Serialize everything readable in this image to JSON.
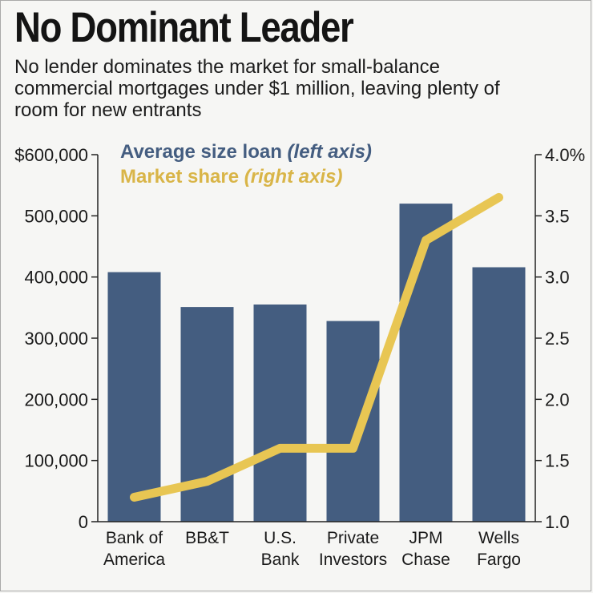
{
  "title": "No Dominant Leader",
  "subtitle_lines": [
    "No lender dominates the market for small-balance",
    "commercial mortgages under $1 million, leaving plenty of",
    "room for new entrants"
  ],
  "legend": {
    "loan_main": "Average size loan",
    "loan_note": "(left axis)",
    "share_main": "Market share",
    "share_note": "(right axis)"
  },
  "colors": {
    "bar": "#445d80",
    "line": "#e8c653",
    "legend_blue": "#445d80",
    "legend_gold": "#d9b548"
  },
  "chart_data": {
    "type": "bar",
    "categories": [
      [
        "Bank of",
        "America"
      ],
      [
        "BB&T"
      ],
      [
        "U.S.",
        "Bank"
      ],
      [
        "Private",
        "Investors"
      ],
      [
        "JPM",
        "Chase"
      ],
      [
        "Wells",
        "Fargo"
      ]
    ],
    "series": [
      {
        "name": "Average size loan",
        "axis": "left",
        "type": "bar",
        "values": [
          408000,
          351000,
          355000,
          328000,
          520000,
          416000
        ]
      },
      {
        "name": "Market share",
        "axis": "right",
        "type": "line",
        "values": [
          1.2,
          1.33,
          1.6,
          1.6,
          3.3,
          3.65
        ]
      }
    ],
    "left_axis": {
      "ylim": [
        0,
        600000
      ],
      "tick_values": [
        0,
        100000,
        200000,
        300000,
        400000,
        500000,
        600000
      ],
      "tick_labels": [
        "0",
        "100,000",
        "200,000",
        "300,000",
        "400,000",
        "500,000",
        "$600,000"
      ]
    },
    "right_axis": {
      "ylim": [
        1.0,
        4.0
      ],
      "tick_values": [
        1.0,
        1.5,
        2.0,
        2.5,
        3.0,
        3.5,
        4.0
      ],
      "tick_labels": [
        "1.0",
        "1.5",
        "2.0",
        "2.5",
        "3.0",
        "3.5",
        "4.0%"
      ]
    },
    "grid": false
  }
}
